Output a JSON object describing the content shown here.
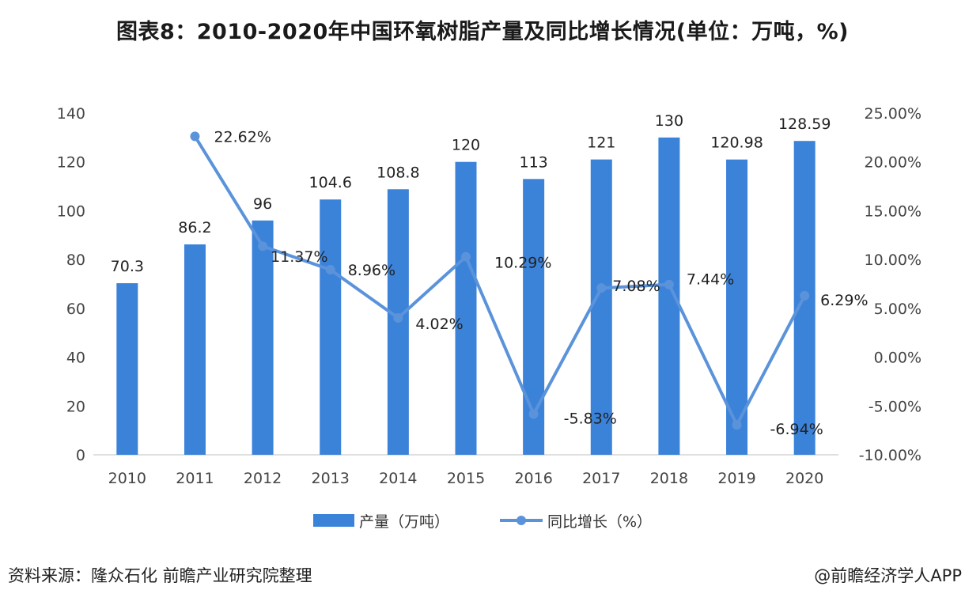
{
  "title": "图表8：2010-2020年中国环氧树脂产量及同比增长情况(单位：万吨，%)",
  "source": "资料来源：隆众石化 前瞻产业研究院整理",
  "credit": "@前瞻经济学人APP",
  "colors": {
    "bar": "#3b82d9",
    "line": "#5b93db",
    "axis": "#bfbfbf"
  },
  "chart_data": {
    "type": "bar",
    "categories": [
      "2010",
      "2011",
      "2012",
      "2013",
      "2014",
      "2015",
      "2016",
      "2017",
      "2018",
      "2019",
      "2020"
    ],
    "series": [
      {
        "name": "产量（万吨）",
        "type": "bar",
        "axis": "left",
        "values": [
          70.3,
          86.2,
          96,
          104.6,
          108.8,
          120,
          113,
          121,
          130,
          120.98,
          128.59
        ],
        "labels": [
          "70.3",
          "86.2",
          "96",
          "104.6",
          "108.8",
          "120",
          "113",
          "121",
          "130",
          "120.98",
          "128.59"
        ]
      },
      {
        "name": "同比增长（%）",
        "type": "line",
        "axis": "right",
        "values": [
          null,
          22.62,
          11.37,
          8.96,
          4.02,
          10.29,
          -5.83,
          7.08,
          7.44,
          -6.94,
          6.29
        ],
        "labels": [
          "",
          "22.62%",
          "11.37%",
          "8.96%",
          "4.02%",
          "10.29%",
          "-5.83%",
          "7.08%",
          "7.44%",
          "-6.94%",
          "6.29%"
        ]
      }
    ],
    "ylim": [
      0,
      140
    ],
    "yticks": [
      "0",
      "20",
      "40",
      "60",
      "80",
      "100",
      "120",
      "140"
    ],
    "y2lim": [
      -10,
      25
    ],
    "y2ticks": [
      "-10.00%",
      "-5.00%",
      "0.00%",
      "5.00%",
      "10.00%",
      "15.00%",
      "20.00%",
      "25.00%"
    ],
    "grid": false,
    "legend": "bottom"
  }
}
